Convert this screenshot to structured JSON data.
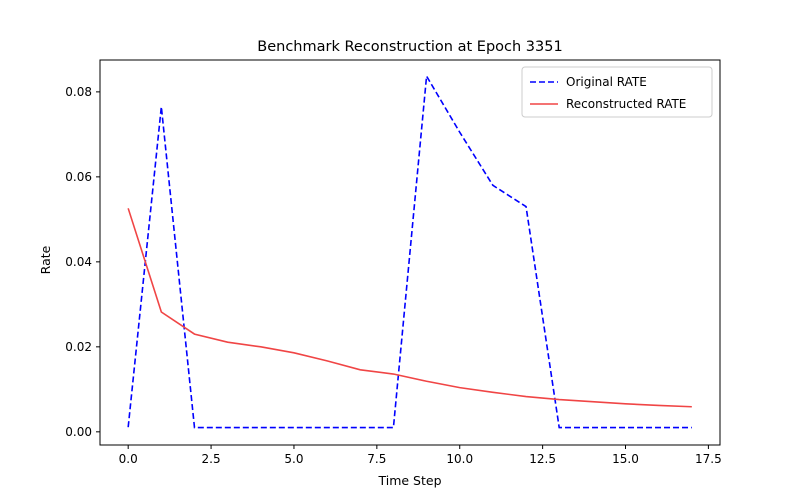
{
  "chart_data": {
    "type": "line",
    "title": "Benchmark Reconstruction at Epoch 3351",
    "xlabel": "Time Step",
    "ylabel": "Rate",
    "xlim": [
      -0.85,
      17.85
    ],
    "ylim": [
      -0.0031,
      0.0875
    ],
    "xticks": [
      0.0,
      2.5,
      5.0,
      7.5,
      10.0,
      12.5,
      15.0,
      17.5
    ],
    "xtick_labels": [
      "0.0",
      "2.5",
      "5.0",
      "7.5",
      "10.0",
      "12.5",
      "15.0",
      "17.5"
    ],
    "yticks": [
      0.0,
      0.02,
      0.04,
      0.06,
      0.08
    ],
    "ytick_labels": [
      "0.00",
      "0.02",
      "0.04",
      "0.06",
      "0.08"
    ],
    "grid": false,
    "legend_position": "top-right",
    "x": [
      0,
      1,
      2,
      3,
      4,
      5,
      6,
      7,
      8,
      9,
      10,
      11,
      12,
      13,
      14,
      15,
      16,
      17
    ],
    "series": [
      {
        "name": "Original RATE",
        "color": "#0000ff",
        "linestyle": "dashed",
        "values": [
          0.0011,
          0.0765,
          0.001,
          0.001,
          0.001,
          0.001,
          0.001,
          0.001,
          0.001,
          0.0837,
          0.0705,
          0.058,
          0.053,
          0.001,
          0.001,
          0.001,
          0.001,
          0.001
        ]
      },
      {
        "name": "Reconstructed RATE",
        "color": "#f04545",
        "linestyle": "solid",
        "values": [
          0.0526,
          0.0282,
          0.023,
          0.0211,
          0.02,
          0.0186,
          0.0167,
          0.0146,
          0.0136,
          0.0119,
          0.0104,
          0.0093,
          0.0083,
          0.0076,
          0.0071,
          0.0066,
          0.0062,
          0.0059
        ]
      }
    ]
  }
}
